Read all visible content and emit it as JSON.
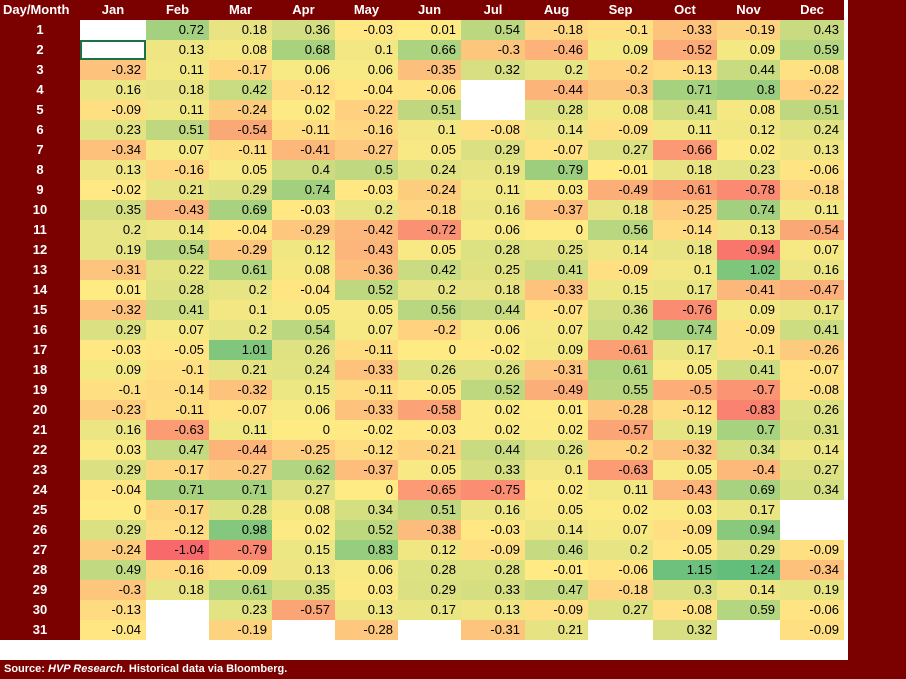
{
  "chart_data": {
    "type": "heatmap",
    "corner_label": "Day/Month",
    "columns": [
      "Jan",
      "Feb",
      "Mar",
      "Apr",
      "May",
      "Jun",
      "Jul",
      "Aug",
      "Sep",
      "Oct",
      "Nov",
      "Dec"
    ],
    "rows": [
      "1",
      "2",
      "3",
      "4",
      "5",
      "6",
      "7",
      "8",
      "9",
      "10",
      "11",
      "12",
      "13",
      "14",
      "15",
      "16",
      "17",
      "18",
      "19",
      "20",
      "21",
      "22",
      "23",
      "24",
      "25",
      "26",
      "27",
      "28",
      "29",
      "30",
      "31"
    ],
    "values": [
      [
        null,
        0.72,
        0.18,
        0.36,
        -0.03,
        0.01,
        0.54,
        -0.18,
        -0.1,
        -0.33,
        -0.19,
        0.43
      ],
      [
        null,
        0.13,
        0.08,
        0.68,
        0.1,
        0.66,
        -0.3,
        -0.46,
        0.09,
        -0.52,
        0.09,
        0.59
      ],
      [
        -0.32,
        0.11,
        -0.17,
        0.06,
        0.06,
        -0.35,
        0.32,
        0.2,
        -0.2,
        -0.13,
        0.44,
        -0.08
      ],
      [
        0.16,
        0.18,
        0.42,
        -0.12,
        -0.04,
        -0.06,
        null,
        -0.44,
        -0.3,
        0.71,
        0.8,
        -0.22
      ],
      [
        -0.09,
        0.11,
        -0.24,
        0.02,
        -0.22,
        0.51,
        null,
        0.28,
        0.08,
        0.41,
        0.08,
        0.51
      ],
      [
        0.23,
        0.51,
        -0.54,
        -0.11,
        -0.16,
        0.1,
        -0.08,
        0.14,
        -0.09,
        0.11,
        0.12,
        0.24
      ],
      [
        -0.34,
        0.07,
        -0.11,
        -0.41,
        -0.27,
        0.05,
        0.29,
        -0.07,
        0.27,
        -0.66,
        0.02,
        0.13
      ],
      [
        0.13,
        -0.16,
        0.05,
        0.4,
        0.5,
        0.24,
        0.19,
        0.79,
        -0.01,
        0.18,
        0.23,
        -0.06
      ],
      [
        -0.02,
        0.21,
        0.29,
        0.74,
        -0.03,
        -0.24,
        0.11,
        0.03,
        -0.49,
        -0.61,
        -0.78,
        -0.18
      ],
      [
        0.35,
        -0.43,
        0.69,
        -0.03,
        0.2,
        -0.18,
        0.16,
        -0.37,
        0.18,
        -0.25,
        0.74,
        0.11
      ],
      [
        0.2,
        0.14,
        -0.04,
        -0.29,
        -0.42,
        -0.72,
        0.06,
        0,
        0.56,
        -0.14,
        0.13,
        -0.54
      ],
      [
        0.19,
        0.54,
        -0.29,
        0.12,
        -0.43,
        0.05,
        0.28,
        0.25,
        0.14,
        0.18,
        -0.94,
        0.07
      ],
      [
        -0.31,
        0.22,
        0.61,
        0.08,
        -0.36,
        0.42,
        0.25,
        0.41,
        -0.09,
        0.1,
        1.02,
        0.16
      ],
      [
        0.01,
        0.28,
        0.2,
        -0.04,
        0.52,
        0.2,
        0.18,
        -0.33,
        0.15,
        0.17,
        -0.41,
        -0.47
      ],
      [
        -0.32,
        0.41,
        0.1,
        0.05,
        0.05,
        0.56,
        0.44,
        -0.07,
        0.36,
        -0.76,
        0.09,
        0.17
      ],
      [
        0.29,
        0.07,
        0.2,
        0.54,
        0.07,
        -0.2,
        0.06,
        0.07,
        0.42,
        0.74,
        -0.09,
        0.41
      ],
      [
        -0.03,
        -0.05,
        1.01,
        0.26,
        -0.11,
        0,
        -0.02,
        0.09,
        -0.61,
        0.17,
        -0.1,
        -0.26
      ],
      [
        0.09,
        -0.1,
        0.21,
        0.24,
        -0.33,
        0.26,
        0.26,
        -0.31,
        0.61,
        0.05,
        0.41,
        -0.07
      ],
      [
        -0.1,
        -0.14,
        -0.32,
        0.15,
        -0.11,
        -0.05,
        0.52,
        -0.49,
        0.55,
        -0.5,
        -0.7,
        -0.08
      ],
      [
        -0.23,
        -0.11,
        -0.07,
        0.06,
        -0.33,
        -0.58,
        0.02,
        0.01,
        -0.28,
        -0.12,
        -0.83,
        0.26
      ],
      [
        0.16,
        -0.63,
        0.11,
        0,
        -0.02,
        -0.03,
        0.02,
        0.02,
        -0.57,
        0.19,
        0.7,
        0.31
      ],
      [
        0.03,
        0.47,
        -0.44,
        -0.25,
        -0.12,
        -0.21,
        0.44,
        0.26,
        -0.2,
        -0.32,
        0.34,
        0.14
      ],
      [
        0.29,
        -0.17,
        -0.27,
        0.62,
        -0.37,
        0.05,
        0.33,
        0.1,
        -0.63,
        0.05,
        -0.4,
        0.27
      ],
      [
        -0.04,
        0.71,
        0.71,
        0.27,
        0,
        -0.65,
        -0.75,
        0.02,
        0.11,
        -0.43,
        0.69,
        0.34
      ],
      [
        0,
        -0.17,
        0.28,
        0.08,
        0.34,
        0.51,
        0.16,
        0.05,
        0.02,
        0.03,
        0.17,
        null
      ],
      [
        0.29,
        -0.12,
        0.98,
        0.02,
        0.52,
        -0.38,
        -0.03,
        0.14,
        0.07,
        -0.09,
        0.94,
        null
      ],
      [
        -0.24,
        -1.04,
        -0.79,
        0.15,
        0.83,
        0.12,
        -0.09,
        0.46,
        0.2,
        -0.05,
        0.29,
        -0.09
      ],
      [
        0.49,
        -0.16,
        -0.09,
        0.13,
        0.06,
        0.28,
        0.28,
        -0.01,
        -0.06,
        1.15,
        1.24,
        -0.34
      ],
      [
        -0.3,
        0.18,
        0.61,
        0.35,
        0.03,
        0.29,
        0.33,
        0.47,
        -0.18,
        0.3,
        0.14,
        0.19
      ],
      [
        -0.13,
        null,
        0.23,
        -0.57,
        0.13,
        0.17,
        0.13,
        -0.09,
        0.27,
        -0.08,
        0.59,
        -0.06
      ],
      [
        -0.04,
        null,
        -0.19,
        null,
        -0.28,
        null,
        -0.31,
        0.21,
        null,
        0.32,
        null,
        -0.09
      ]
    ],
    "color_scale": {
      "low": "#f8696b",
      "mid": "#ffeb84",
      "high": "#63be7b"
    }
  },
  "footer": {
    "source_prefix": "Source: ",
    "source_name": "HVP Research.",
    "source_suffix": "  Historical data via Bloomberg."
  },
  "colors": {
    "background": "#7b0000",
    "header_text": "#ffffff"
  }
}
